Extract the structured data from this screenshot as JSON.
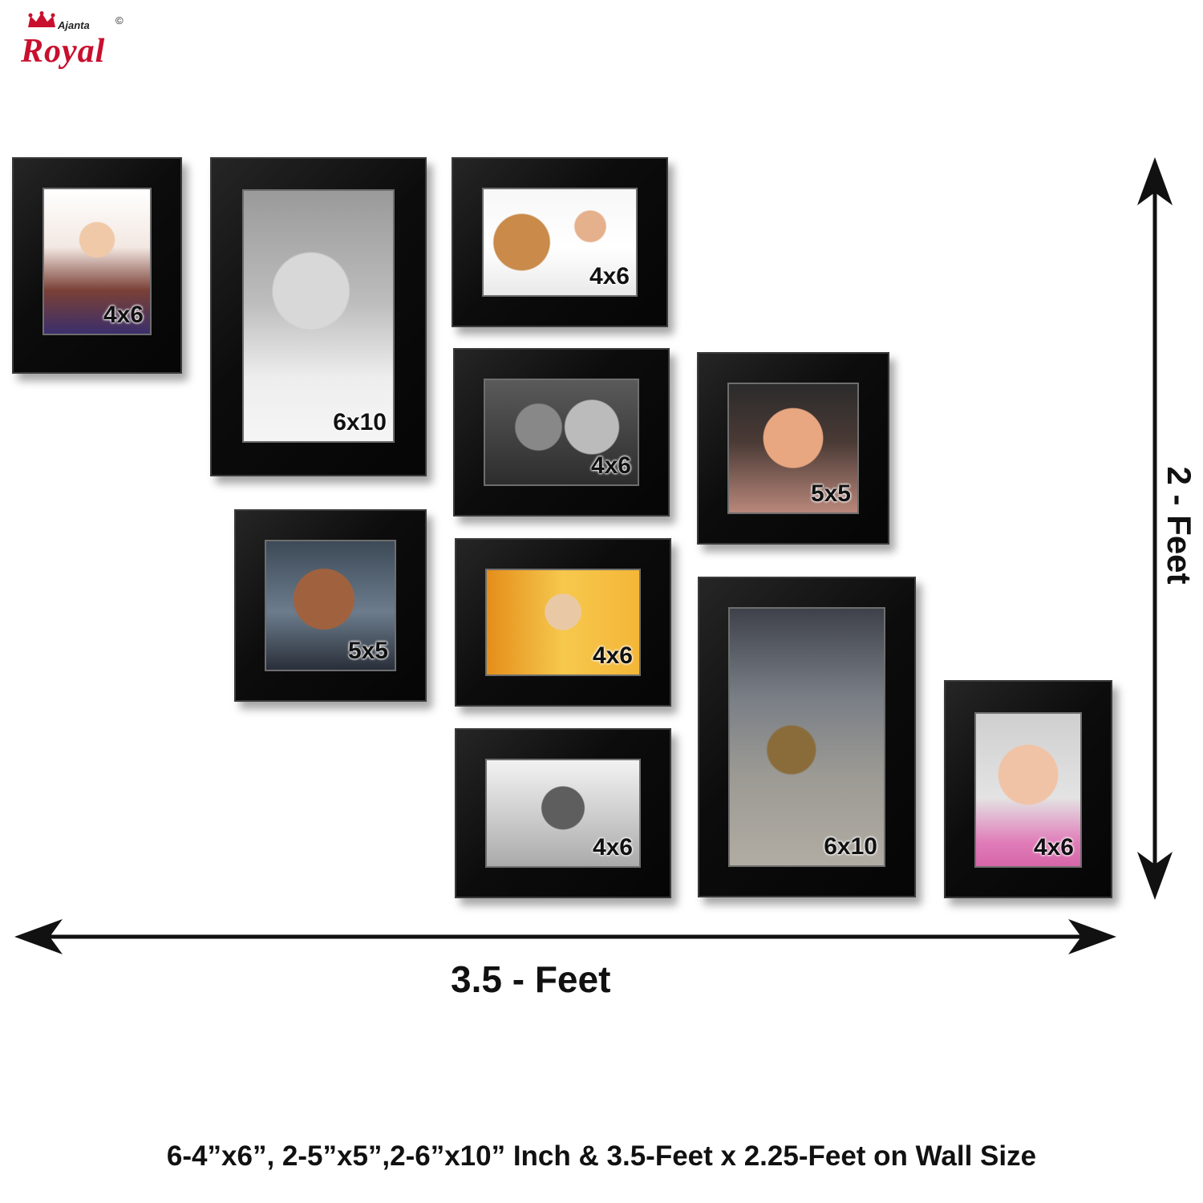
{
  "brand": {
    "logo_text": "Royal",
    "logo_subtext": "Ajanta",
    "copyright_symbol": "©",
    "accent_color": "#c8102e"
  },
  "frames": [
    {
      "id": "frame-1",
      "size_label": "4x6",
      "photo": "baby-with-toy"
    },
    {
      "id": "frame-2",
      "size_label": "6x10",
      "photo": "baby-sunglasses-bw"
    },
    {
      "id": "frame-3",
      "size_label": "4x6",
      "photo": "boy-with-teddy"
    },
    {
      "id": "frame-4",
      "size_label": "4x6",
      "photo": "two-children-bw"
    },
    {
      "id": "frame-5",
      "size_label": "5x5",
      "photo": "smiling-baby"
    },
    {
      "id": "frame-6",
      "size_label": "5x5",
      "photo": "smiling-boy"
    },
    {
      "id": "frame-7",
      "size_label": "4x6",
      "photo": "baby-yellow-background"
    },
    {
      "id": "frame-8",
      "size_label": "6x10",
      "photo": "boy-walking"
    },
    {
      "id": "frame-9",
      "size_label": "4x6",
      "photo": "boy-hands-on-head-bw"
    },
    {
      "id": "frame-10",
      "size_label": "4x6",
      "photo": "baby-pink-shirt"
    }
  ],
  "dimensions": {
    "width_label": "3.5 - Feet",
    "height_label": "2 - Feet"
  },
  "caption": "6-4”x6”, 2-5”x5”,2-6”x10” Inch  &  3.5-Feet x 2.25-Feet on Wall Size"
}
